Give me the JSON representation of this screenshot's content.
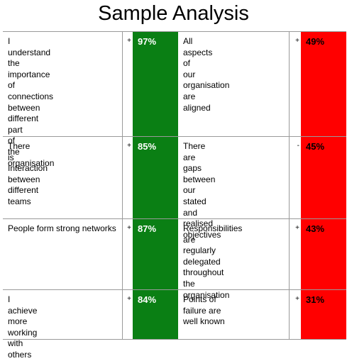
{
  "title": "Sample Analysis",
  "rows": [
    {
      "left_text": "I understand the importance of connections between different part of the organisation",
      "left_sign": "+",
      "left_pct": "97%",
      "right_text": "All aspects of our organisation are aligned",
      "right_sign": "+",
      "right_pct": "49%"
    },
    {
      "left_text": "There is Interaction between different teams",
      "left_sign": "+",
      "left_pct": "85%",
      "right_text": "There are gaps between our stated and realised objectives",
      "right_sign": "-",
      "right_pct": "45%"
    },
    {
      "left_text": "People form strong networks",
      "left_sign": "+",
      "left_pct": "87%",
      "right_text": "Responsibilities are regularly delegated throughout the organisation",
      "right_sign": "+",
      "right_pct": "43%"
    },
    {
      "left_text": "I achieve more working with others",
      "left_sign": "+",
      "left_pct": "84%",
      "right_text": "Points of failure are well known",
      "right_sign": "+",
      "right_pct": "31%"
    }
  ],
  "colors": {
    "positive_column": "#0a7f14",
    "negative_column": "#ff0000"
  }
}
